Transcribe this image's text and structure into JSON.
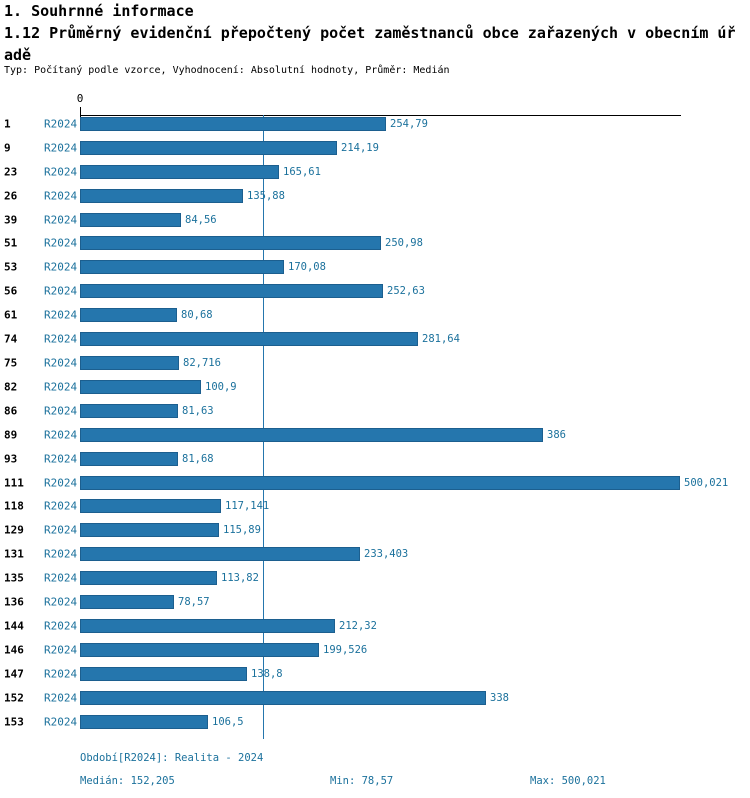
{
  "header": {
    "title": "1. Souhrnné informace",
    "subtitle_line1": "1.12 Průměrný evidenční přepočtený počet zaměstnanců obce zařazených v obecním úř",
    "subtitle_line2": "adě",
    "meta": "Typ: Počítaný podle vzorce, Vyhodnocení: Absolutní hodnoty, Průměr: Medián"
  },
  "chart_data": {
    "type": "bar",
    "orientation": "horizontal",
    "title": "1.12 Průměrný evidenční přepočtený počet zaměstnanců obce zařazených v obecním úřadě",
    "series_label": "R2024",
    "categories": [
      "1",
      "9",
      "23",
      "26",
      "39",
      "51",
      "53",
      "56",
      "61",
      "74",
      "75",
      "82",
      "86",
      "89",
      "93",
      "111",
      "118",
      "129",
      "131",
      "135",
      "136",
      "144",
      "146",
      "147",
      "152",
      "153"
    ],
    "values": [
      254.79,
      214.19,
      165.61,
      135.88,
      84.56,
      250.98,
      170.08,
      252.63,
      80.68,
      281.64,
      82.716,
      100.9,
      81.63,
      386,
      81.68,
      500.021,
      117.141,
      115.89,
      233.403,
      113.82,
      78.57,
      212.32,
      199.526,
      138.8,
      338,
      106.5
    ],
    "value_labels": [
      "254,79",
      "214,19",
      "165,61",
      "135,88",
      "84,56",
      "250,98",
      "170,08",
      "252,63",
      "80,68",
      "281,64",
      "82,716",
      "100,9",
      "81,63",
      "386",
      "81,68",
      "500,021",
      "117,141",
      "115,89",
      "233,403",
      "113,82",
      "78,57",
      "212,32",
      "199,526",
      "138,8",
      "338",
      "106,5"
    ],
    "x_axis": {
      "origin_label": "0",
      "min": 0,
      "max": 500.021
    },
    "median": 152.205,
    "min": 78.57,
    "max": 500.021,
    "bar_color": "#2576ad",
    "label_color": "#1b719c",
    "grid": false,
    "legend_position": "none"
  },
  "footer": {
    "period": "Období[R2024]: Realita - 2024",
    "median": "Medián: 152,205",
    "min": "Min: 78,57",
    "max": "Max: 500,021"
  }
}
